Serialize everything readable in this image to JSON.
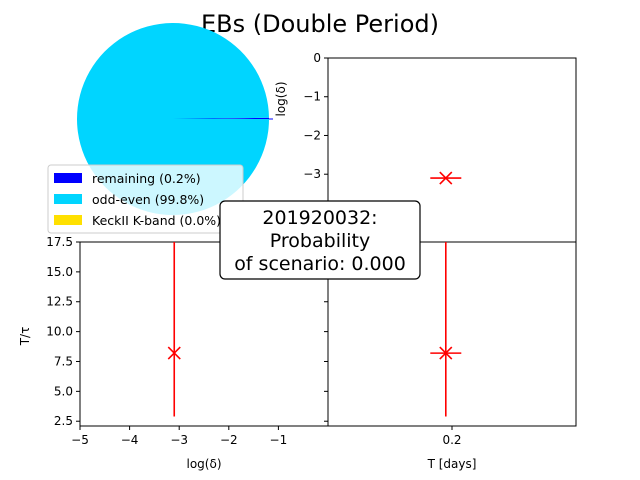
{
  "chart_data": {
    "title": "EBs (Double Period)",
    "pie": {
      "type": "pie",
      "slices": [
        {
          "label": "remaining (0.2%)",
          "value": 0.2,
          "color": "#0000ff"
        },
        {
          "label": "odd-even (99.8%)",
          "value": 99.8,
          "color": "#00d5ff"
        },
        {
          "label": "KeckII K-band (0.0%)",
          "value": 0.0,
          "color": "#ffe000"
        }
      ],
      "legend_position": "lower-left"
    },
    "annotation": {
      "lines": [
        "201920032:",
        "Probability",
        "of scenario: 0.000"
      ]
    },
    "top_right": {
      "type": "scatter",
      "xlabel": "",
      "ylabel": "log(δ)",
      "ylim": [
        0,
        -4.75
      ],
      "yticks": [
        0,
        -1,
        -2,
        -3
      ],
      "yticklabels": [
        "0",
        "−1",
        "−2",
        "−3"
      ],
      "xlim": [
        0,
        0.4
      ],
      "point": {
        "x": 0.19,
        "y": -3.1,
        "xerr": 0.025,
        "yerr": 0.0
      }
    },
    "bottom_left": {
      "type": "scatter",
      "xlabel": "log(δ)",
      "ylabel": "T/τ",
      "xlim": [
        -5,
        0
      ],
      "ylim": [
        2.1,
        17.5
      ],
      "xticks": [
        -5,
        -4,
        -3,
        -2,
        -1
      ],
      "xticklabels": [
        "−5",
        "−4",
        "−3",
        "−2",
        "−1"
      ],
      "yticks": [
        2.5,
        5.0,
        7.5,
        10.0,
        12.5,
        15.0,
        17.5
      ],
      "yticklabels": [
        "2.5",
        "5.0",
        "7.5",
        "10.0",
        "12.5",
        "15.0",
        "17.5"
      ],
      "point": {
        "x": -3.1,
        "y": 8.2,
        "xerr": 0.0,
        "yerr_low": 5.3,
        "yerr_high": 9.3
      }
    },
    "bottom_right": {
      "type": "scatter",
      "xlabel": "T [days]",
      "ylabel": "",
      "xlim": [
        0,
        0.4
      ],
      "ylim": [
        2.1,
        17.5
      ],
      "xticks": [
        0.2
      ],
      "xticklabels": [
        "0.2"
      ],
      "point": {
        "x": 0.19,
        "y": 8.2,
        "xerr": 0.025,
        "yerr_low": 5.3,
        "yerr_high": 9.3
      }
    },
    "marker_color": "#ff0000"
  }
}
